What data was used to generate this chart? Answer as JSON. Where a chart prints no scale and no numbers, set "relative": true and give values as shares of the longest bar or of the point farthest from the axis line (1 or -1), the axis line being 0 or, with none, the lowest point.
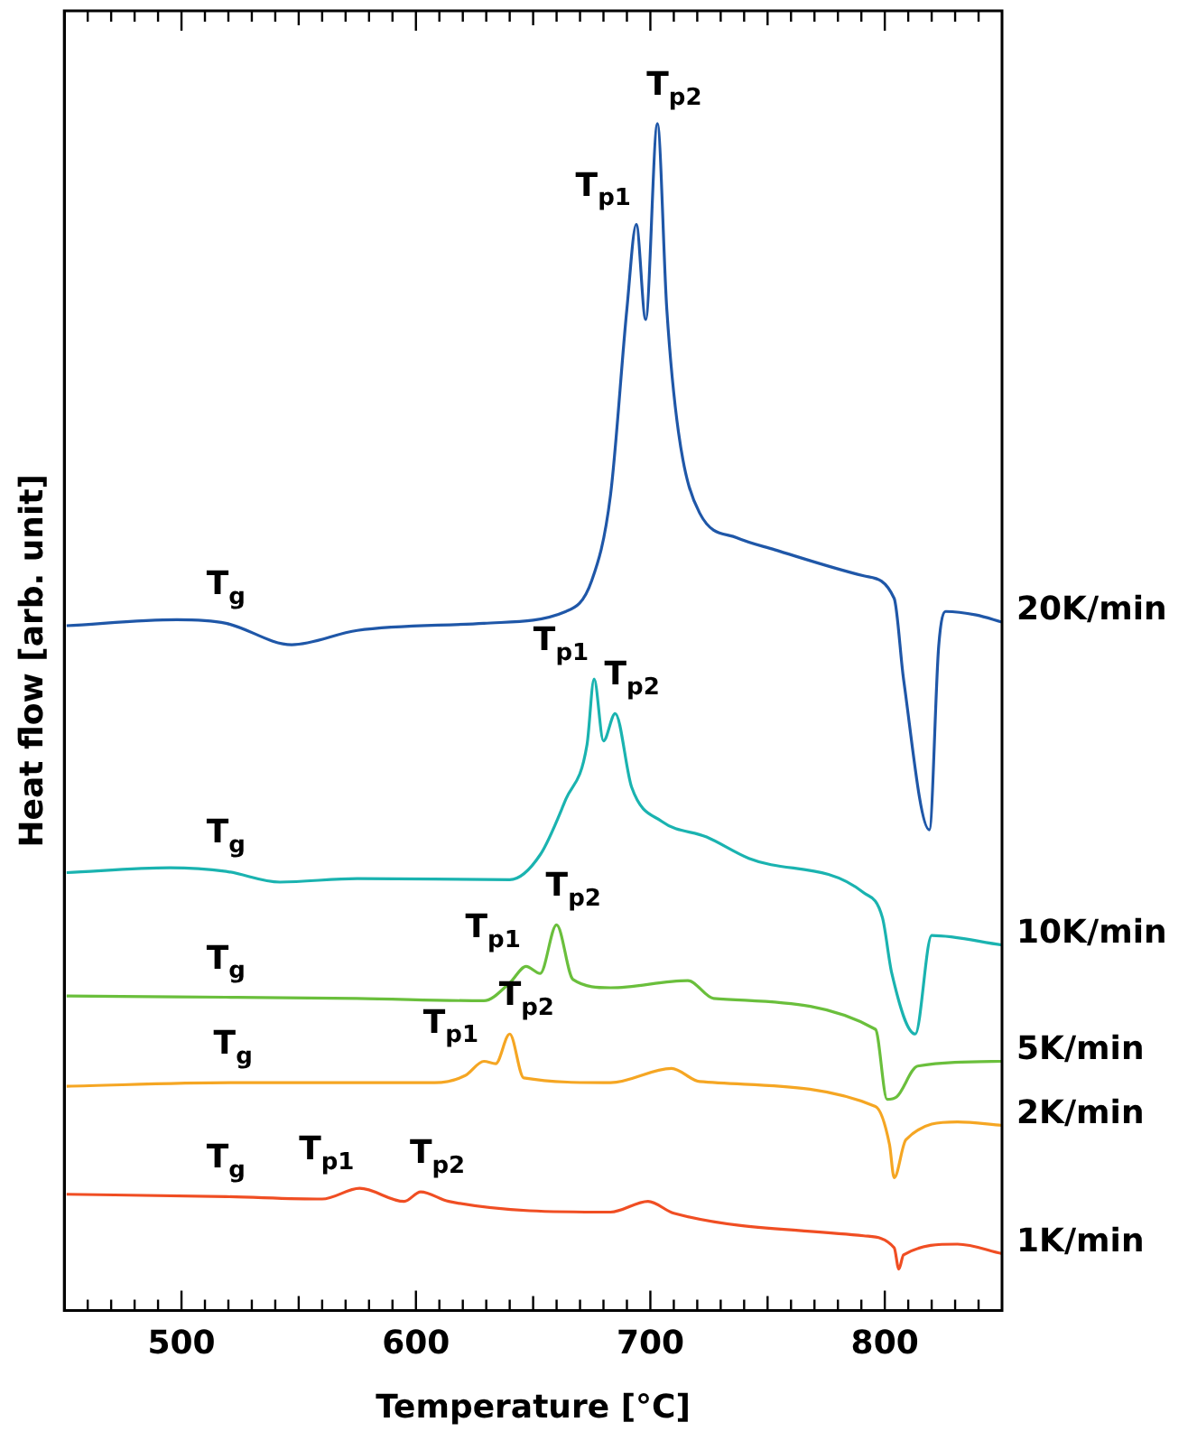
{
  "chart_data": {
    "type": "line",
    "xlabel": "Temperature [°C]",
    "ylabel": "Heat flow [arb. unit]",
    "relative": true,
    "xlim": [
      450,
      850
    ],
    "xticks": [
      {
        "value": 460,
        "label": null
      },
      {
        "value": 470,
        "label": null
      },
      {
        "value": 480,
        "label": null
      },
      {
        "value": 490,
        "label": null
      },
      500,
      {
        "value": 510,
        "label": null
      },
      {
        "value": 520,
        "label": null
      },
      {
        "value": 530,
        "label": null
      },
      {
        "value": 540,
        "label": null
      },
      {
        "value": 550,
        "label": null
      },
      {
        "value": 560,
        "label": null
      },
      {
        "value": 570,
        "label": null
      },
      {
        "value": 580,
        "label": null
      },
      {
        "value": 590,
        "label": null
      },
      600,
      {
        "value": 610,
        "label": null
      },
      {
        "value": 620,
        "label": null
      },
      {
        "value": 630,
        "label": null
      },
      {
        "value": 640,
        "label": null
      },
      {
        "value": 650,
        "label": null
      },
      {
        "value": 660,
        "label": null
      },
      {
        "value": 670,
        "label": null
      },
      {
        "value": 680,
        "label": null
      },
      {
        "value": 690,
        "label": null
      },
      700,
      {
        "value": 710,
        "label": null
      },
      {
        "value": 720,
        "label": null
      },
      {
        "value": 730,
        "label": null
      },
      {
        "value": 740,
        "label": null
      },
      {
        "value": 750,
        "label": null
      },
      {
        "value": 760,
        "label": null
      },
      {
        "value": 770,
        "label": null
      },
      {
        "value": 780,
        "label": null
      },
      {
        "value": 790,
        "label": null
      },
      800,
      {
        "value": 810,
        "label": null
      },
      {
        "value": 820,
        "label": null
      },
      {
        "value": 830,
        "label": null
      },
      {
        "value": 840,
        "label": null
      }
    ],
    "tick_labels": "x",
    "grid": false,
    "legend": false,
    "marker": "none",
    "series": [
      {
        "name": "20K/min",
        "color": "#1f57a8",
        "x": [
          451,
          498,
          519,
          547,
          575,
          629,
          664,
          675,
          683,
          690,
          694,
          698,
          703,
          707,
          712,
          721,
          737,
          753,
          791,
          804,
          808,
          819,
          823,
          826,
          839,
          850
        ],
        "values": [
          0.577,
          0.582,
          0.579,
          0.561,
          0.573,
          0.579,
          0.589,
          0.615,
          0.687,
          0.844,
          0.915,
          0.835,
          1.0,
          0.844,
          0.74,
          0.672,
          0.651,
          0.641,
          0.619,
          0.6,
          0.532,
          0.405,
          0.56,
          0.589,
          0.586,
          0.58
        ]
      },
      {
        "name": "10K/min",
        "color": "#1ab3b0",
        "x": [
          451,
          495,
          519,
          542,
          575,
          640,
          653,
          664,
          673,
          676,
          680,
          685,
          692,
          705,
          724,
          742,
          791,
          799,
          803,
          813,
          820,
          850
        ],
        "values": [
          0.369,
          0.373,
          0.37,
          0.361,
          0.364,
          0.363,
          0.384,
          0.431,
          0.477,
          0.532,
          0.48,
          0.503,
          0.441,
          0.412,
          0.399,
          0.381,
          0.352,
          0.331,
          0.284,
          0.233,
          0.316,
          0.308
        ]
      },
      {
        "name": "5K/min",
        "color": "#6abf3c",
        "x": [
          451,
          519,
          575,
          629,
          640,
          647,
          653,
          660,
          667,
          683,
          716,
          727,
          796,
          801,
          805,
          814,
          850
        ],
        "values": [
          0.265,
          0.264,
          0.263,
          0.261,
          0.276,
          0.29,
          0.284,
          0.325,
          0.279,
          0.272,
          0.278,
          0.263,
          0.237,
          0.178,
          0.18,
          0.206,
          0.21
        ]
      },
      {
        "name": "2K/min",
        "color": "#f5a623",
        "x": [
          451,
          522,
          608,
          621,
          629,
          634,
          640,
          646,
          683,
          709,
          721,
          796,
          802,
          804,
          809,
          831,
          850
        ],
        "values": [
          0.189,
          0.192,
          0.192,
          0.198,
          0.21,
          0.208,
          0.233,
          0.196,
          0.192,
          0.204,
          0.193,
          0.172,
          0.14,
          0.112,
          0.144,
          0.159,
          0.156
        ]
      },
      {
        "name": "1K/min",
        "color": "#f04e23",
        "x": [
          451,
          519,
          560,
          576,
          595,
          602,
          614,
          683,
          699,
          710,
          791,
          804,
          806,
          808,
          831,
          850
        ],
        "values": [
          0.098,
          0.096,
          0.094,
          0.103,
          0.092,
          0.1,
          0.092,
          0.083,
          0.092,
          0.082,
          0.063,
          0.053,
          0.035,
          0.047,
          0.056,
          0.048
        ]
      }
    ],
    "annotations": [
      {
        "text": "T$_{g}$",
        "x": 519,
        "y": 0.579
      },
      {
        "text": "T$_{p1}$",
        "x": 694,
        "y": 0.915
      },
      {
        "text": "T$_{p2}$",
        "x": 703,
        "y": 1.0
      },
      {
        "text": "T$_{g}$",
        "x": 519,
        "y": 0.37
      },
      {
        "text": "T$_{p1}$",
        "x": 676,
        "y": 0.532
      },
      {
        "text": "T$_{p2}$",
        "x": 685,
        "y": 0.503
      },
      {
        "text": "T$_{g}$",
        "x": 519,
        "y": 0.264
      },
      {
        "text": "T$_{p1}$",
        "x": 647,
        "y": 0.29
      },
      {
        "text": "T$_{p2}$",
        "x": 660,
        "y": 0.325
      },
      {
        "text": "T$_{g}$",
        "x": 522,
        "y": 0.192
      },
      {
        "text": "T$_{p1}$",
        "x": 629,
        "y": 0.21
      },
      {
        "text": "T$_{p2}$",
        "x": 640,
        "y": 0.233
      },
      {
        "text": "T$_{g}$",
        "x": 519,
        "y": 0.096
      },
      {
        "text": "T$_{p1}$",
        "x": 576,
        "y": 0.103
      },
      {
        "text": "T$_{p2}$",
        "x": 602,
        "y": 0.1
      }
    ]
  }
}
